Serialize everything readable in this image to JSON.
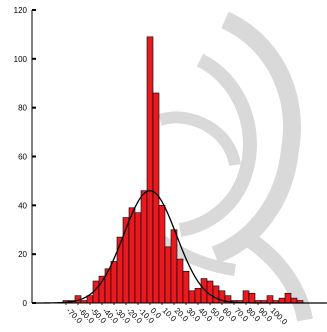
{
  "chart_data": {
    "type": "bar",
    "title": "",
    "xlabel": "",
    "ylabel": "",
    "bar_color": "#e8191f",
    "curve_color": "#000000",
    "ylim": [
      0,
      120
    ],
    "y_ticks": [
      "0",
      "20",
      "40",
      "60",
      "80",
      "100",
      "120"
    ],
    "x_tick_labels": [
      "-70.0",
      "-60.0",
      "-50.0",
      "-40.0",
      "-30.0",
      "-20.0",
      "-10.0",
      "0.0",
      "10.0",
      "20.0",
      "30.0",
      "40.0",
      "50.0",
      "60.0",
      "70.0",
      "80.0",
      "90.0",
      "100.0"
    ],
    "bins": {
      "start": -72.5,
      "width": 5
    },
    "values": [
      1,
      1,
      3,
      1,
      3,
      9,
      11,
      14,
      17,
      27,
      35,
      39,
      37,
      46,
      109,
      86,
      40,
      23,
      30,
      18,
      13,
      5,
      6,
      10,
      9,
      7,
      5,
      3,
      1,
      1,
      5,
      4,
      1,
      1,
      3,
      1,
      2,
      4,
      2,
      1
    ],
    "normal_curve": {
      "mean": 0,
      "sd": 22,
      "peak": 46
    }
  }
}
